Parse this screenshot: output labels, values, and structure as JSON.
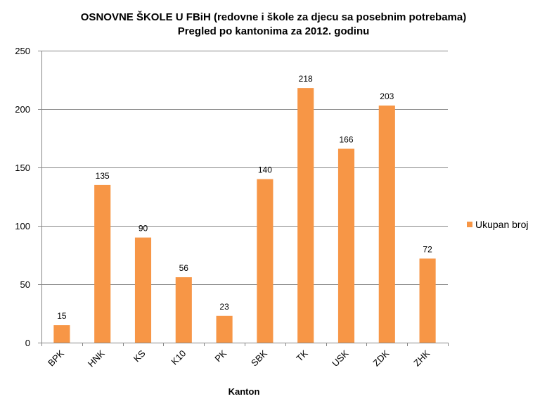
{
  "chart_data": {
    "type": "bar",
    "title_line1": "OSNOVNE ŠKOLE U FBiH (redovne i škole za djecu sa posebnim potrebama)",
    "title_line2": "Pregled po kantonima za 2012. godinu",
    "xlabel": "Kanton",
    "ylabel": "",
    "ylim": [
      0,
      250
    ],
    "yticks": [
      0,
      50,
      100,
      150,
      200,
      250
    ],
    "categories": [
      "BPK",
      "HNK",
      "KS",
      "K10",
      "PK",
      "SBK",
      "TK",
      "USK",
      "ZDK",
      "ZHK"
    ],
    "series": [
      {
        "name": "Ukupan broj",
        "values": [
          15,
          135,
          90,
          56,
          23,
          140,
          218,
          166,
          203,
          72
        ]
      }
    ],
    "grid": true,
    "legend_position": "right",
    "bar_color": "#F79646",
    "grid_color": "#868686"
  }
}
